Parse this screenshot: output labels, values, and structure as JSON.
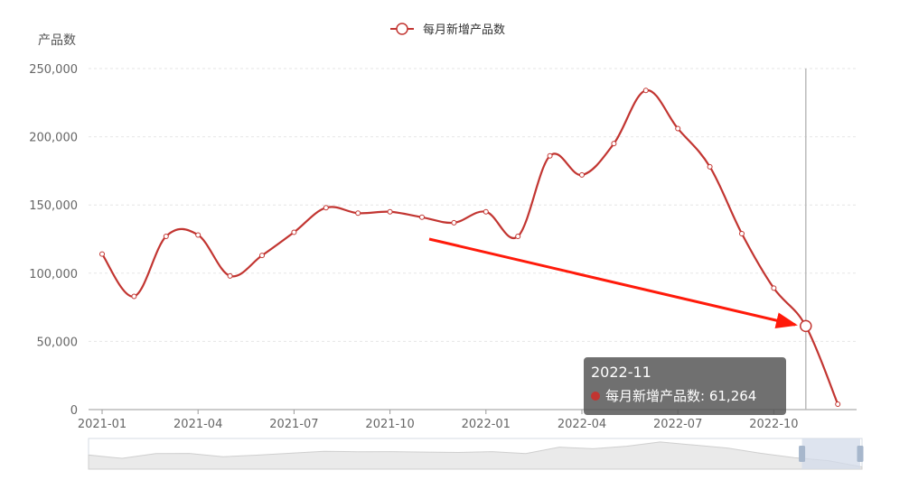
{
  "colors": {
    "series": "#c23531",
    "grid": "#e6e6e6",
    "axis": "#999999",
    "arrow": "#ff1a0a",
    "zoom_fill": "#d3dbea",
    "zoom_handle": "#a7b7cc"
  },
  "legend": {
    "label": "每月新增产品数"
  },
  "tooltip": {
    "title": "2022-11",
    "series_label": "每月新增产品数",
    "value_text": "61,264"
  },
  "chart_data": {
    "type": "line",
    "smooth": true,
    "ylabel": "产品数",
    "ylim": [
      0,
      250000
    ],
    "y_ticks": [
      0,
      50000,
      100000,
      150000,
      200000,
      250000
    ],
    "y_tick_labels": [
      "0",
      "50,000",
      "100,000",
      "150,000",
      "200,000",
      "250,000"
    ],
    "x_tick_labels": [
      "2021-01",
      "2021-04",
      "2021-07",
      "2021-10",
      "2022-01",
      "2022-04",
      "2022-07",
      "2022-10"
    ],
    "categories": [
      "2021-01",
      "2021-02",
      "2021-03",
      "2021-04",
      "2021-05",
      "2021-06",
      "2021-07",
      "2021-08",
      "2021-09",
      "2021-10",
      "2021-11",
      "2021-12",
      "2022-01",
      "2022-02",
      "2022-03",
      "2022-04",
      "2022-05",
      "2022-06",
      "2022-07",
      "2022-08",
      "2022-09",
      "2022-10",
      "2022-11",
      "2022-12"
    ],
    "series": [
      {
        "name": "每月新增产品数",
        "values": [
          114000,
          83000,
          127000,
          128000,
          98000,
          113000,
          130000,
          148000,
          144000,
          145000,
          141000,
          137000,
          145000,
          127000,
          186000,
          172000,
          195000,
          234000,
          206000,
          178000,
          129000,
          89000,
          61264,
          4000
        ]
      }
    ],
    "highlight_index": 22,
    "grid": true,
    "legend_position": "top-center",
    "annotation": "arrow pointing to 2022-11 point",
    "datazoom": {
      "range": [
        "2022-10",
        "2022-12"
      ]
    }
  }
}
